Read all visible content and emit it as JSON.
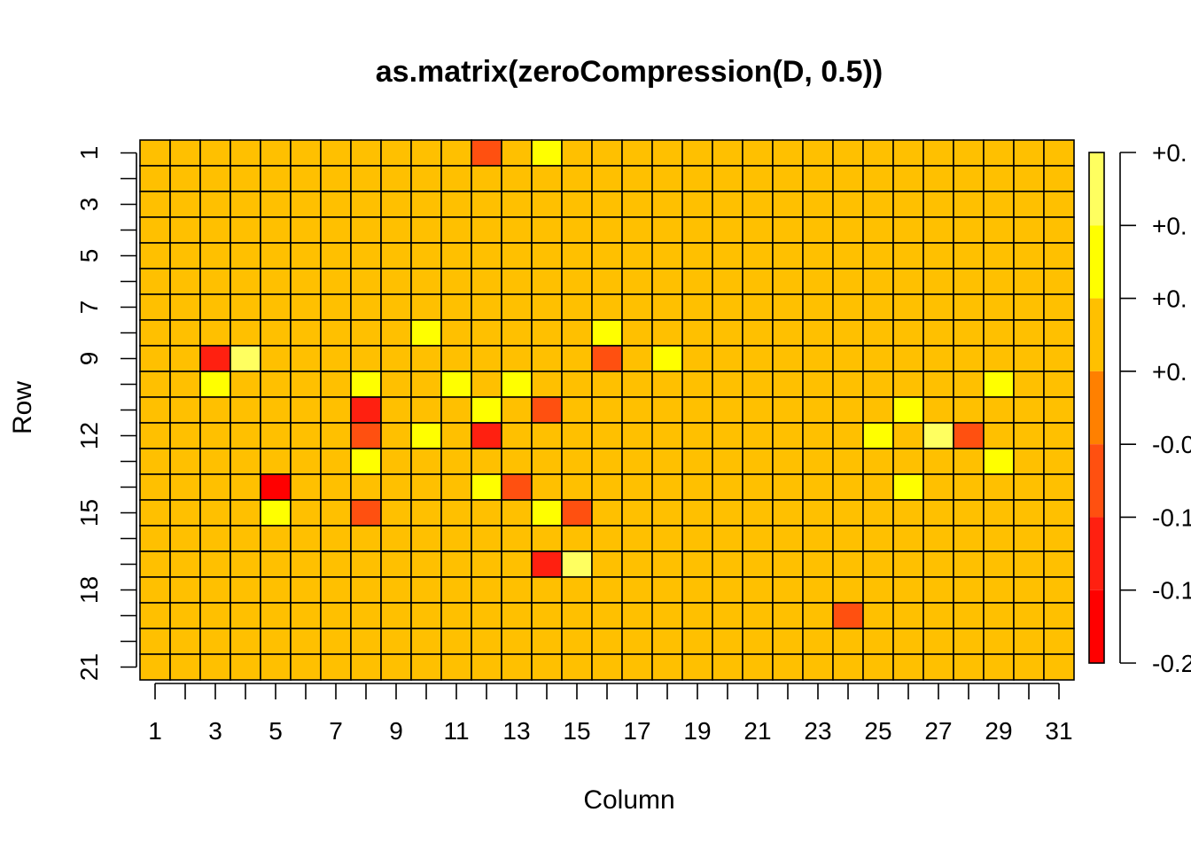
{
  "chart_data": {
    "type": "heatmap",
    "title": "as.matrix(zeroCompression(D, 0.5))",
    "xlabel": "Column",
    "ylabel": "Row",
    "n_rows": 21,
    "n_cols": 31,
    "x_tick_labels": [
      "1",
      "3",
      "5",
      "7",
      "9",
      "11",
      "13",
      "15",
      "17",
      "19",
      "21",
      "23",
      "25",
      "27",
      "29",
      "31"
    ],
    "y_tick_labels": [
      "1",
      "3",
      "5",
      "7",
      "9",
      "12",
      "15",
      "18",
      "21"
    ],
    "legend_labels": [
      "+0.",
      "+0.",
      "+0.",
      "+0.",
      "-0.0",
      "-0.1",
      "-0.1",
      "-0.2"
    ],
    "legend_colors_top_to_bottom": [
      "#FFFF60",
      "#FFFF00",
      "#FFC000",
      "#FF8000",
      "#FF5010",
      "#FF2010",
      "#FF0000"
    ],
    "default_color": "#FFC000",
    "nonzero_cells": [
      {
        "row": 1,
        "col": 12,
        "color": "#FF5010"
      },
      {
        "row": 1,
        "col": 14,
        "color": "#FFFF00"
      },
      {
        "row": 8,
        "col": 10,
        "color": "#FFFF00"
      },
      {
        "row": 8,
        "col": 16,
        "color": "#FFFF00"
      },
      {
        "row": 9,
        "col": 3,
        "color": "#FF2010"
      },
      {
        "row": 9,
        "col": 4,
        "color": "#FFFF60"
      },
      {
        "row": 9,
        "col": 16,
        "color": "#FF5010"
      },
      {
        "row": 9,
        "col": 18,
        "color": "#FFFF00"
      },
      {
        "row": 10,
        "col": 3,
        "color": "#FFFF00"
      },
      {
        "row": 10,
        "col": 8,
        "color": "#FFFF00"
      },
      {
        "row": 10,
        "col": 11,
        "color": "#FFFF00"
      },
      {
        "row": 10,
        "col": 13,
        "color": "#FFFF00"
      },
      {
        "row": 10,
        "col": 29,
        "color": "#FFFF00"
      },
      {
        "row": 11,
        "col": 8,
        "color": "#FF2010"
      },
      {
        "row": 11,
        "col": 12,
        "color": "#FFFF00"
      },
      {
        "row": 11,
        "col": 14,
        "color": "#FF5010"
      },
      {
        "row": 11,
        "col": 26,
        "color": "#FFFF00"
      },
      {
        "row": 12,
        "col": 8,
        "color": "#FF5010"
      },
      {
        "row": 12,
        "col": 10,
        "color": "#FFFF00"
      },
      {
        "row": 12,
        "col": 12,
        "color": "#FF2010"
      },
      {
        "row": 12,
        "col": 25,
        "color": "#FFFF00"
      },
      {
        "row": 12,
        "col": 27,
        "color": "#FFFF60"
      },
      {
        "row": 12,
        "col": 28,
        "color": "#FF5010"
      },
      {
        "row": 13,
        "col": 8,
        "color": "#FFFF00"
      },
      {
        "row": 13,
        "col": 29,
        "color": "#FFFF00"
      },
      {
        "row": 14,
        "col": 5,
        "color": "#FF0000"
      },
      {
        "row": 14,
        "col": 12,
        "color": "#FFFF00"
      },
      {
        "row": 14,
        "col": 13,
        "color": "#FF5010"
      },
      {
        "row": 14,
        "col": 26,
        "color": "#FFFF00"
      },
      {
        "row": 15,
        "col": 5,
        "color": "#FFFF00"
      },
      {
        "row": 15,
        "col": 8,
        "color": "#FF5010"
      },
      {
        "row": 15,
        "col": 14,
        "color": "#FFFF00"
      },
      {
        "row": 15,
        "col": 15,
        "color": "#FF5010"
      },
      {
        "row": 17,
        "col": 14,
        "color": "#FF2010"
      },
      {
        "row": 17,
        "col": 15,
        "color": "#FFFF60"
      },
      {
        "row": 19,
        "col": 24,
        "color": "#FF5010"
      }
    ]
  }
}
